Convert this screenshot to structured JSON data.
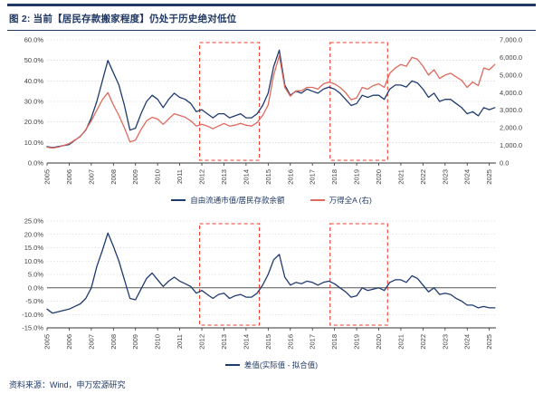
{
  "header": {
    "title": "图 2: 当前【居民存款搬家程度】仍处于历史绝对低位"
  },
  "footer": {
    "source": "资料来源：Wind，申万宏源研究"
  },
  "colors": {
    "navy": "#1f3864",
    "series_blue": "#1f3a6e",
    "series_red": "#dd6a5d",
    "highlight_red": "#ef3b2c"
  },
  "chart_data": [
    {
      "type": "line",
      "title": "",
      "x_range": [
        2005,
        2025.3
      ],
      "x_tick_years": [
        2005,
        2006,
        2007,
        2008,
        2009,
        2010,
        2011,
        2012,
        2013,
        2014,
        2015,
        2016,
        2017,
        2018,
        2019,
        2020,
        2021,
        2022,
        2023,
        2024,
        2025
      ],
      "x": [
        2005,
        2005.25,
        2005.5,
        2005.75,
        2006,
        2006.25,
        2006.5,
        2006.75,
        2007,
        2007.25,
        2007.5,
        2007.75,
        2008,
        2008.25,
        2008.5,
        2008.75,
        2009,
        2009.25,
        2009.5,
        2009.75,
        2010,
        2010.25,
        2010.5,
        2010.75,
        2011,
        2011.25,
        2011.5,
        2011.75,
        2012,
        2012.25,
        2012.5,
        2012.75,
        2013,
        2013.25,
        2013.5,
        2013.75,
        2014,
        2014.25,
        2014.5,
        2014.75,
        2015,
        2015.25,
        2015.5,
        2015.75,
        2016,
        2016.25,
        2016.5,
        2016.75,
        2017,
        2017.25,
        2017.5,
        2017.75,
        2018,
        2018.25,
        2018.5,
        2018.75,
        2019,
        2019.25,
        2019.5,
        2019.75,
        2020,
        2020.25,
        2020.5,
        2020.75,
        2021,
        2021.25,
        2021.5,
        2021.75,
        2022,
        2022.25,
        2022.5,
        2022.75,
        2023,
        2023.25,
        2023.5,
        2023.75,
        2024,
        2024.25,
        2024.5,
        2024.75,
        2025,
        2025.25
      ],
      "axes": {
        "left": {
          "min": 0,
          "max": 60,
          "ticks": [
            {
              "v": 0,
              "label": "0.0%"
            },
            {
              "v": 10,
              "label": "10.0%"
            },
            {
              "v": 20,
              "label": "20.0%"
            },
            {
              "v": 30,
              "label": "30.0%"
            },
            {
              "v": 40,
              "label": "40.0%"
            },
            {
              "v": 50,
              "label": "50.0%"
            },
            {
              "v": 60,
              "label": "60.0%"
            }
          ]
        },
        "right": {
          "min": 0,
          "max": 7000,
          "ticks": [
            {
              "v": 0,
              "label": "0.0"
            },
            {
              "v": 1000,
              "label": "1,000.0"
            },
            {
              "v": 2000,
              "label": "2,000.0"
            },
            {
              "v": 3000,
              "label": "3,000.0"
            },
            {
              "v": 4000,
              "label": "4,000.0"
            },
            {
              "v": 5000,
              "label": "5,000.0"
            },
            {
              "v": 6000,
              "label": "6,000.0"
            },
            {
              "v": 7000,
              "label": "7,000.0"
            }
          ]
        }
      },
      "highlight_color": "#ef3b2c",
      "highlight_boxes": [
        {
          "x0": 2011.9,
          "x1": 2014.6
        },
        {
          "x0": 2017.8,
          "x1": 2020.4
        }
      ],
      "series": [
        {
          "name": "自由流通市值/居民存款余额",
          "axis": "left",
          "color": "#1f3a6e",
          "values": [
            8,
            7.5,
            8,
            8.5,
            9,
            11,
            13,
            16,
            22,
            30,
            40,
            50,
            44,
            38,
            28,
            16,
            17,
            24,
            30,
            33,
            31,
            27,
            31,
            34,
            32,
            31,
            29,
            25,
            26,
            24,
            22,
            24,
            24,
            22,
            23,
            24,
            22,
            22,
            24,
            28,
            34,
            47,
            55,
            38,
            33,
            35,
            34,
            36,
            35,
            34,
            36,
            37,
            36,
            34,
            31,
            28,
            29,
            33,
            32,
            33,
            33,
            31,
            36,
            38,
            38,
            37,
            40,
            39,
            36,
            32,
            34,
            30,
            31,
            31,
            29,
            27,
            24,
            25,
            23,
            27,
            26,
            27
          ]
        },
        {
          "name": "万得全A (右)",
          "axis": "right",
          "color": "#dd6a5d",
          "values": [
            900,
            850,
            900,
            1000,
            1100,
            1300,
            1500,
            1900,
            2400,
            3000,
            3600,
            4000,
            3300,
            2700,
            2000,
            1200,
            1300,
            1900,
            2400,
            2600,
            2500,
            2200,
            2500,
            2800,
            2700,
            2600,
            2400,
            2100,
            2200,
            2100,
            1950,
            2100,
            2250,
            2100,
            2150,
            2250,
            2150,
            2100,
            2300,
            2700,
            3300,
            5000,
            6100,
            4300,
            3800,
            4100,
            4100,
            4300,
            4300,
            4200,
            4500,
            4600,
            4500,
            4300,
            4000,
            3600,
            3700,
            4300,
            4200,
            4400,
            4500,
            4300,
            5100,
            5400,
            5600,
            5500,
            6000,
            5900,
            5500,
            5000,
            5300,
            4800,
            5000,
            5100,
            4900,
            4700,
            4300,
            4600,
            4400,
            5400,
            5300,
            5600
          ]
        }
      ]
    },
    {
      "type": "line",
      "title": "",
      "x_range": [
        2005,
        2025.3
      ],
      "x_tick_years": [
        2005,
        2006,
        2007,
        2008,
        2009,
        2010,
        2011,
        2012,
        2013,
        2014,
        2015,
        2016,
        2017,
        2018,
        2019,
        2020,
        2021,
        2022,
        2023,
        2024,
        2025
      ],
      "x": [
        2005,
        2005.25,
        2005.5,
        2005.75,
        2006,
        2006.25,
        2006.5,
        2006.75,
        2007,
        2007.25,
        2007.5,
        2007.75,
        2008,
        2008.25,
        2008.5,
        2008.75,
        2009,
        2009.25,
        2009.5,
        2009.75,
        2010,
        2010.25,
        2010.5,
        2010.75,
        2011,
        2011.25,
        2011.5,
        2011.75,
        2012,
        2012.25,
        2012.5,
        2012.75,
        2013,
        2013.25,
        2013.5,
        2013.75,
        2014,
        2014.25,
        2014.5,
        2014.75,
        2015,
        2015.25,
        2015.5,
        2015.75,
        2016,
        2016.25,
        2016.5,
        2016.75,
        2017,
        2017.25,
        2017.5,
        2017.75,
        2018,
        2018.25,
        2018.5,
        2018.75,
        2019,
        2019.25,
        2019.5,
        2019.75,
        2020,
        2020.25,
        2020.5,
        2020.75,
        2021,
        2021.25,
        2021.5,
        2021.75,
        2022,
        2022.25,
        2022.5,
        2022.75,
        2023,
        2023.25,
        2023.5,
        2023.75,
        2024,
        2024.25,
        2024.5,
        2024.75,
        2025,
        2025.25
      ],
      "axes": {
        "left": {
          "min": -15,
          "max": 25,
          "ticks": [
            {
              "v": -15,
              "label": "-15.0%"
            },
            {
              "v": -10,
              "label": "-10.0%"
            },
            {
              "v": -5,
              "label": "-5.0%"
            },
            {
              "v": 0,
              "label": "0.0%"
            },
            {
              "v": 5,
              "label": "5.0%"
            },
            {
              "v": 10,
              "label": "10.0%"
            },
            {
              "v": 15,
              "label": "15.0%"
            },
            {
              "v": 20,
              "label": "20.0%"
            },
            {
              "v": 25,
              "label": "25.0%"
            }
          ]
        }
      },
      "highlight_color": "#ef3b2c",
      "highlight_boxes": [
        {
          "x0": 2011.9,
          "x1": 2014.6
        },
        {
          "x0": 2017.8,
          "x1": 2020.4
        }
      ],
      "series": [
        {
          "name": "差值(实际值 - 拟合值)",
          "axis": "left",
          "color": "#1f3a6e",
          "values": [
            -8,
            -9.5,
            -9,
            -8.5,
            -8,
            -7,
            -6,
            -4,
            0,
            8,
            14,
            20.5,
            15.5,
            10,
            3,
            -4,
            -4.5,
            -0.5,
            3.5,
            5.5,
            3,
            0.5,
            2.5,
            4,
            2.5,
            1.5,
            0.5,
            -2,
            -1,
            -2.5,
            -4,
            -2.5,
            -2,
            -4,
            -3,
            -2.5,
            -3.5,
            -3.5,
            -2,
            1,
            5,
            10.5,
            12.5,
            4,
            1,
            2,
            1.5,
            2.5,
            2,
            1,
            2,
            2.5,
            1.5,
            0,
            -1.5,
            -3.5,
            -3,
            0,
            -1,
            -0.5,
            0,
            -1,
            2,
            3,
            3,
            2,
            4.5,
            3.5,
            1,
            -1.5,
            0,
            -2.5,
            -2,
            -2.5,
            -4,
            -5,
            -6.5,
            -6.5,
            -7.5,
            -7,
            -7.5,
            -7.5
          ]
        }
      ]
    }
  ]
}
